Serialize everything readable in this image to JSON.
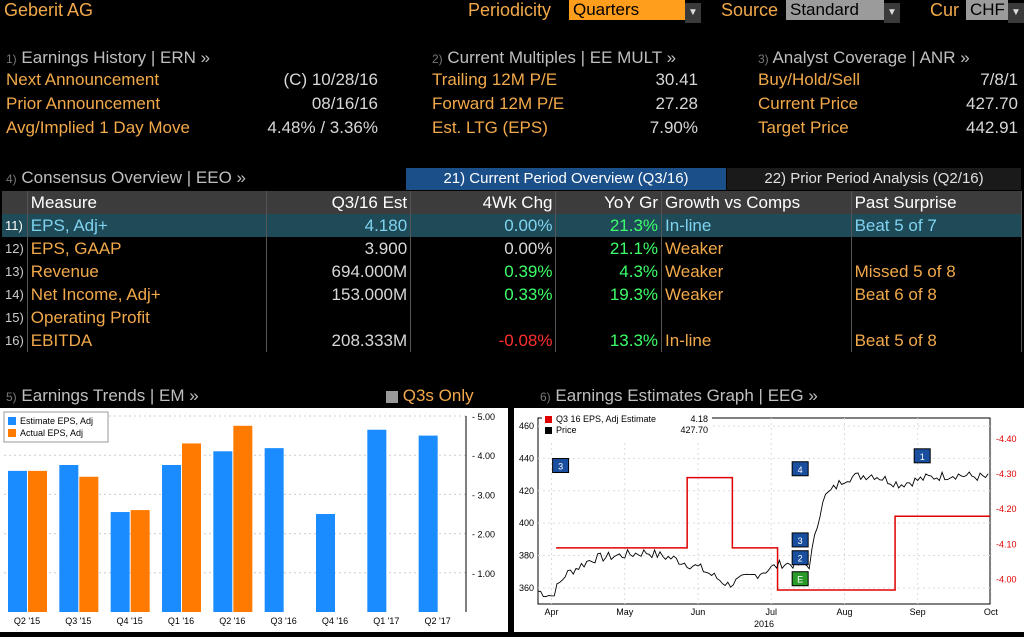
{
  "top": {
    "company": "Geberit AG",
    "periodicity_label": "Periodicity",
    "periodicity_value": "Quarters",
    "source_label": "Source",
    "source_value": "Standard",
    "cur_label": "Cur",
    "cur_value": "CHF"
  },
  "erh": {
    "num": "1)",
    "title": "Earnings History | ERN »",
    "rows": [
      {
        "label": "Next Announcement",
        "value": "(C)  10/28/16"
      },
      {
        "label": "Prior Announcement",
        "value": "08/16/16"
      },
      {
        "label": "Avg/Implied 1 Day Move",
        "value": "4.48% / 3.36%"
      }
    ]
  },
  "mult": {
    "num": "2)",
    "title": "Current Multiples | EE MULT »",
    "rows": [
      {
        "label": "Trailing 12M P/E",
        "value": "30.41"
      },
      {
        "label": "Forward 12M P/E",
        "value": "27.28"
      },
      {
        "label": "Est. LTG (EPS)",
        "value": "7.90%"
      }
    ]
  },
  "anr": {
    "num": "3)",
    "title": "Analyst Coverage | ANR »",
    "rows": [
      {
        "label": "Buy/Hold/Sell",
        "value": "7/8/1"
      },
      {
        "label": "Current Price",
        "value": "427.70"
      },
      {
        "label": "Target Price",
        "value": "442.91"
      }
    ]
  },
  "cons": {
    "num": "4)",
    "title": "Consensus Overview | EEO »",
    "tab_current": "21) Current Period Overview (Q3/16)",
    "tab_prior": "22) Prior Period Analysis (Q2/16)",
    "headers": [
      "Measure",
      "Q3/16 Est",
      "4Wk Chg",
      "YoY Gr",
      "Growth vs Comps",
      "Past Surprise"
    ],
    "rows": [
      {
        "n": "11)",
        "measure": "EPS, Adj+",
        "est": "4.180",
        "chg": "0.00%",
        "yoy": "21.3%",
        "comps": "In-line",
        "surprise": "Beat 5 of 7"
      },
      {
        "n": "12)",
        "measure": "EPS, GAAP",
        "est": "3.900",
        "chg": "0.00%",
        "yoy": "21.1%",
        "comps": "Weaker",
        "surprise": ""
      },
      {
        "n": "13)",
        "measure": "Revenue",
        "est": "694.000M",
        "chg": "0.39%",
        "yoy": "4.3%",
        "comps": "Weaker",
        "surprise": "Missed 5 of 8"
      },
      {
        "n": "14)",
        "measure": "Net Income, Adj+",
        "est": "153.000M",
        "chg": "0.33%",
        "yoy": "19.3%",
        "comps": "Weaker",
        "surprise": "Beat 6 of 8"
      },
      {
        "n": "15)",
        "measure": "Operating Profit",
        "est": "",
        "chg": "",
        "yoy": "",
        "comps": "",
        "surprise": ""
      },
      {
        "n": "16)",
        "measure": "EBITDA",
        "est": "208.333M",
        "chg": "-0.08%",
        "yoy": "13.3%",
        "comps": "In-line",
        "surprise": "Beat 5 of 8"
      }
    ]
  },
  "em": {
    "num": "5)",
    "title": "Earnings Trends | EM »",
    "toggle": "Q3s Only"
  },
  "eeg": {
    "num": "6)",
    "title": "Earnings Estimates Graph | EEG »"
  },
  "chart_data": [
    {
      "type": "bar",
      "categories": [
        "Q2 '15",
        "Q3 '15",
        "Q4 '15",
        "Q1 '16",
        "Q2 '16",
        "Q3 '16",
        "Q4 '16",
        "Q1 '17",
        "Q2 '17"
      ],
      "series": [
        {
          "name": "Estimate EPS, Adj",
          "color": "#1a8cff",
          "values": [
            3.6,
            3.75,
            2.55,
            3.75,
            4.1,
            4.18,
            2.5,
            4.65,
            4.5
          ]
        },
        {
          "name": "Actual EPS, Adj",
          "color": "#ff7a00",
          "values": [
            3.6,
            3.45,
            2.6,
            4.3,
            4.75,
            null,
            null,
            null,
            null
          ]
        }
      ],
      "ylim": [
        0,
        5
      ],
      "yticks": [
        "1.00",
        "2.00",
        "3.00",
        "4.00",
        "5.00"
      ],
      "legend": "top-left"
    },
    {
      "type": "line",
      "xlabel": "2016",
      "x_ticks": [
        "Apr",
        "May",
        "Jun",
        "Jul",
        "Aug",
        "Sep",
        "Oct"
      ],
      "left_yticks": [
        "360",
        "380",
        "400",
        "420",
        "440",
        "460"
      ],
      "right_yticks": [
        "4.00",
        "4.10",
        "4.20",
        "4.30",
        "4.40"
      ],
      "legend_entries": [
        {
          "label": "Q3 16 EPS, Adj Estimate",
          "value": "4.18",
          "color": "#e00000"
        },
        {
          "label": "Price",
          "value": "427.70",
          "color": "#000000"
        }
      ],
      "estimate_steps": [
        {
          "start": 0.04,
          "end": 0.16,
          "value": 4.09
        },
        {
          "start": 0.16,
          "end": 0.33,
          "value": 4.09
        },
        {
          "start": 0.33,
          "end": 0.43,
          "value": 4.29
        },
        {
          "start": 0.43,
          "end": 0.53,
          "value": 4.09
        },
        {
          "start": 0.53,
          "end": 0.79,
          "value": 3.97
        },
        {
          "start": 0.79,
          "end": 1.0,
          "value": 4.18
        }
      ],
      "markers": [
        {
          "label": "3",
          "x": 0.05,
          "y": 435
        },
        {
          "label": "4",
          "x": 0.58,
          "y": 433
        },
        {
          "label": "1",
          "x": 0.85,
          "y": 441
        },
        {
          "label": "3",
          "x": 0.58,
          "y": 389
        },
        {
          "label": "2",
          "x": 0.58,
          "y": 378
        },
        {
          "label": "E",
          "x": 0.58,
          "y": 365
        }
      ]
    }
  ]
}
